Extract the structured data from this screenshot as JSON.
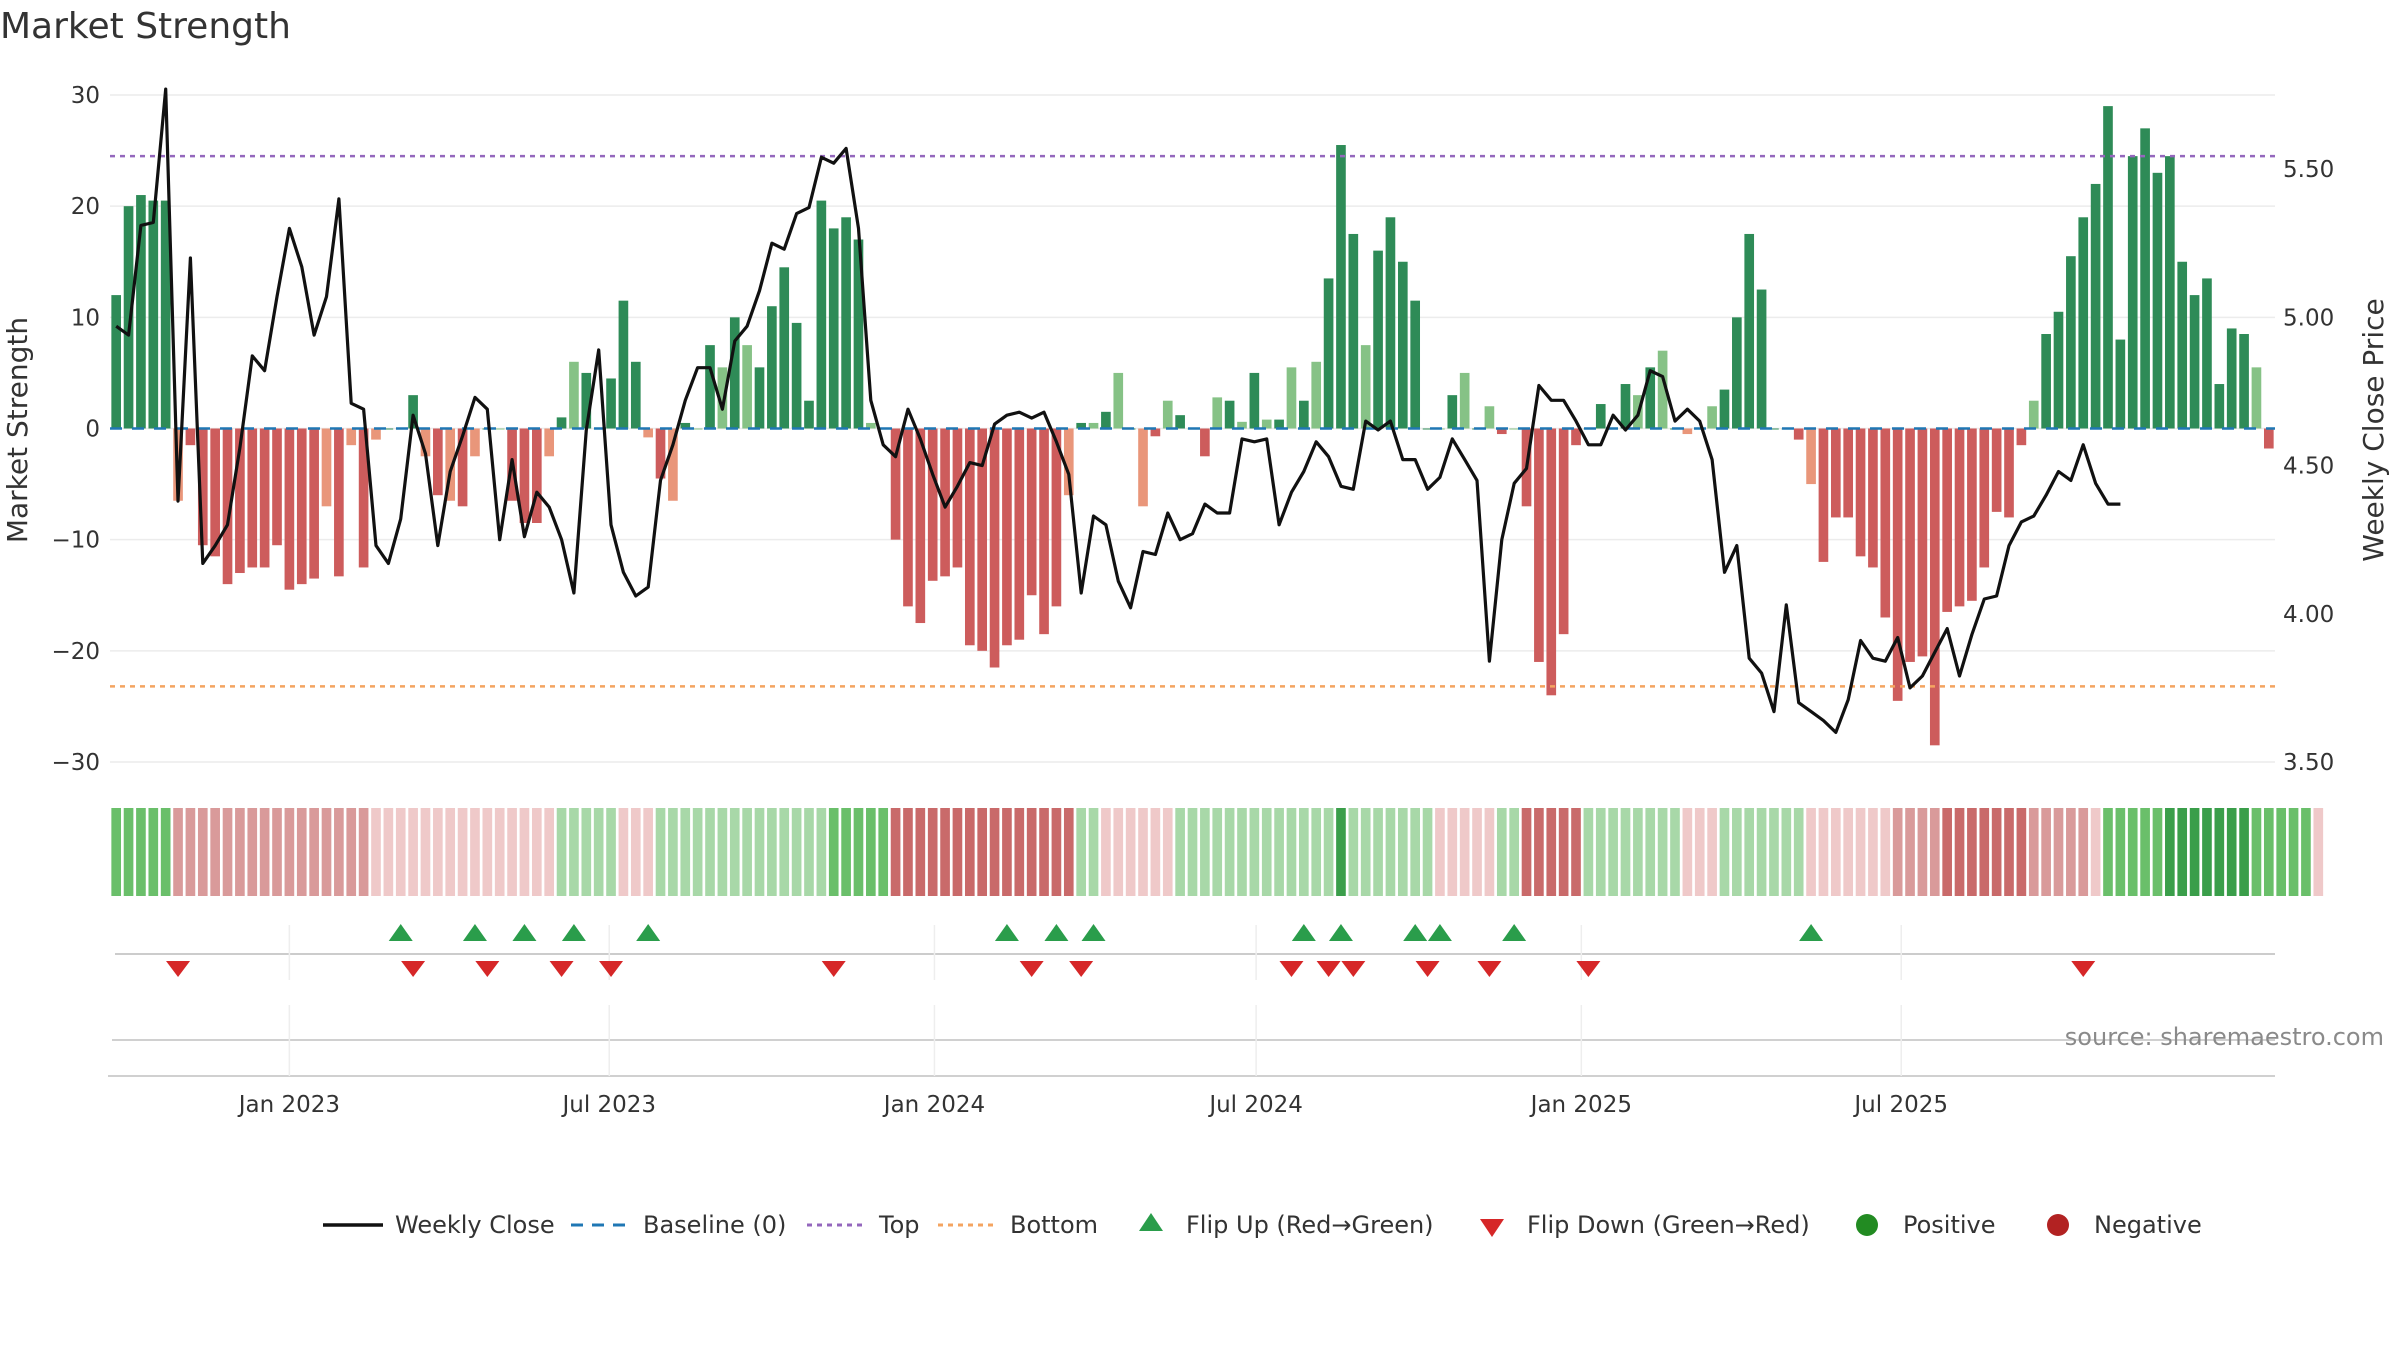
{
  "chart_data": {
    "type": "bar",
    "title": "Market Strength",
    "ylabel": "Market Strength",
    "y2label": "Weekly Close Price",
    "source": "source: sharemaestro.com",
    "ylim": [
      -30,
      30
    ],
    "y2lim": [
      3.5,
      5.75
    ],
    "y_ticks": [
      30,
      20,
      10,
      0,
      -10,
      -20,
      -30
    ],
    "y_tick_labels": [
      "30",
      "20",
      "10",
      "0",
      "−10",
      "−20",
      "−30"
    ],
    "y2_ticks": [
      5.5,
      5.0,
      4.5,
      4.0,
      3.5
    ],
    "y2_tick_labels": [
      "5.50",
      "5.00",
      "4.50",
      "4.00",
      "3.50"
    ],
    "top_line": 24.5,
    "bottom_line": -23.2,
    "start_date": "2022-09-25",
    "x_ticks": [
      {
        "date": "2023-01-01",
        "label": "Jan 2023"
      },
      {
        "date": "2023-07-01",
        "label": "Jul 2023"
      },
      {
        "date": "2024-01-01",
        "label": "Jan 2024"
      },
      {
        "date": "2024-07-01",
        "label": "Jul 2024"
      },
      {
        "date": "2025-01-01",
        "label": "Jan 2025"
      },
      {
        "date": "2025-07-01",
        "label": "Jul 2025"
      }
    ],
    "strength": [
      12,
      20,
      21,
      20.5,
      20.5,
      -6.5,
      -1.5,
      -10.5,
      -11.5,
      -14,
      -13,
      -12.5,
      -12.5,
      -10.5,
      -14.5,
      -14,
      -13.5,
      -7,
      -13.3,
      -1.5,
      -12.5,
      -1,
      0,
      0,
      3,
      -2.5,
      -6,
      -6.5,
      -7,
      -2.5,
      0,
      0,
      -6.5,
      -8.5,
      -8.5,
      -2.5,
      1,
      6,
      5,
      0,
      4.5,
      11.5,
      6,
      -0.8,
      -4.5,
      -6.5,
      0.5,
      0,
      7.5,
      5.5,
      10,
      7.5,
      5.5,
      11,
      14.5,
      9.5,
      2.5,
      20.5,
      18,
      19,
      17,
      0.5,
      0,
      -10,
      -16,
      -17.5,
      -13.7,
      -13.3,
      -12.5,
      -19.5,
      -20,
      -21.5,
      -19.5,
      -19,
      -15,
      -18.5,
      -16,
      -6,
      0.5,
      0.5,
      1.5,
      5,
      0,
      -7,
      -0.7,
      2.5,
      1.2,
      0,
      -2.5,
      2.8,
      2.5,
      0.6,
      5,
      0.8,
      0.8,
      5.5,
      2.5,
      6,
      13.5,
      25.5,
      17.5,
      7.5,
      16,
      19,
      15,
      11.5,
      0,
      0,
      3,
      5,
      0,
      2,
      -0.5,
      0,
      -7,
      -21,
      -24,
      -18.5,
      -1.5,
      0,
      2.2,
      0,
      4,
      3,
      5.5,
      7,
      0,
      -0.5,
      0,
      2,
      3.5,
      10,
      17.5,
      12.5,
      0,
      0,
      -1,
      -5,
      -12,
      -8,
      -8,
      -11.5,
      -12.5,
      -17,
      -24.5,
      -21,
      -20.5,
      -28.5,
      -16.5,
      -16,
      -15.5,
      -12.5,
      -7.5,
      -8,
      -1.5,
      2.5,
      8.5,
      10.5,
      15.5,
      19,
      22,
      29,
      8,
      24.5,
      27,
      23,
      24.5,
      15,
      12,
      13.5,
      4,
      9,
      8.5,
      5.5,
      -1.8
    ],
    "close": [
      4.97,
      4.94,
      5.31,
      5.32,
      5.77,
      4.38,
      5.2,
      4.17,
      4.23,
      4.3,
      4.56,
      4.87,
      4.82,
      5.07,
      5.3,
      5.17,
      4.94,
      5.07,
      5.4,
      4.71,
      4.69,
      4.23,
      4.17,
      4.32,
      4.67,
      4.54,
      4.23,
      4.48,
      4.6,
      4.73,
      4.69,
      4.25,
      4.52,
      4.26,
      4.41,
      4.36,
      4.25,
      4.07,
      4.62,
      4.89,
      4.3,
      4.14,
      4.06,
      4.09,
      4.45,
      4.57,
      4.72,
      4.83,
      4.83,
      4.69,
      4.92,
      4.97,
      5.09,
      5.25,
      5.23,
      5.35,
      5.37,
      5.54,
      5.52,
      5.57,
      5.3,
      4.72,
      4.57,
      4.53,
      4.69,
      4.59,
      4.47,
      4.36,
      4.43,
      4.51,
      4.5,
      4.64,
      4.67,
      4.68,
      4.66,
      4.68,
      4.58,
      4.47,
      4.07,
      4.33,
      4.3,
      4.11,
      4.02,
      4.21,
      4.2,
      4.34,
      4.25,
      4.27,
      4.37,
      4.34,
      4.34,
      4.59,
      4.58,
      4.59,
      4.3,
      4.41,
      4.48,
      4.58,
      4.53,
      4.43,
      4.42,
      4.65,
      4.62,
      4.65,
      4.52,
      4.52,
      4.42,
      4.46,
      4.59,
      4.52,
      4.45,
      3.84,
      4.25,
      4.44,
      4.49,
      4.77,
      4.72,
      4.72,
      4.65,
      4.57,
      4.57,
      4.67,
      4.62,
      4.67,
      4.82,
      4.8,
      4.65,
      4.69,
      4.65,
      4.52,
      4.14,
      4.23,
      3.85,
      3.8,
      3.67,
      4.03,
      3.7,
      3.67,
      3.64,
      3.6,
      3.71,
      3.91,
      3.85,
      3.84,
      3.92,
      3.75,
      3.79,
      3.87,
      3.95,
      3.79,
      3.93,
      4.05,
      4.06,
      4.23,
      4.31,
      4.33,
      4.4,
      4.48,
      4.45,
      4.57,
      4.44,
      4.37,
      4.37
    ],
    "band": [
      5,
      5,
      5,
      5,
      5,
      2,
      2,
      2,
      2,
      2,
      2,
      2,
      2,
      2,
      2,
      2,
      2,
      2,
      2,
      2,
      2,
      1,
      1,
      1,
      1,
      1,
      1,
      1,
      1,
      1,
      1,
      1,
      1,
      1,
      1,
      1,
      4,
      4,
      4,
      4,
      4,
      1,
      1,
      1,
      4,
      4,
      4,
      4,
      4,
      4,
      4,
      4,
      4,
      4,
      4,
      4,
      4,
      4,
      5,
      5,
      5,
      5,
      5,
      3,
      3,
      3,
      3,
      3,
      3,
      3,
      3,
      3,
      3,
      3,
      3,
      3,
      3,
      3,
      4,
      4,
      1,
      1,
      1,
      1,
      1,
      1,
      4,
      4,
      4,
      4,
      4,
      4,
      4,
      4,
      4,
      4,
      4,
      4,
      4,
      6,
      4,
      4,
      4,
      4,
      4,
      4,
      4,
      1,
      1,
      1,
      1,
      1,
      4,
      4,
      3,
      3,
      3,
      3,
      3,
      4,
      4,
      4,
      4,
      4,
      4,
      4,
      4,
      1,
      1,
      1,
      4,
      4,
      4,
      4,
      4,
      4,
      4,
      1,
      1,
      1,
      1,
      1,
      1,
      1,
      2,
      2,
      2,
      2,
      3,
      3,
      3,
      3,
      3,
      3,
      3,
      2,
      2,
      2,
      2,
      2,
      1,
      5,
      5,
      5,
      5,
      5,
      6,
      6,
      6,
      6,
      6,
      6,
      6,
      5,
      5,
      5,
      5,
      5,
      1
    ],
    "flips_up": [
      23,
      29,
      33,
      37,
      43,
      72,
      76,
      79,
      96,
      99,
      105,
      107,
      113,
      137
    ],
    "flips_down": [
      5,
      24,
      30,
      36,
      40,
      58,
      74,
      78,
      95,
      98,
      100,
      106,
      111,
      119,
      159
    ],
    "legend": [
      {
        "label": "Weekly Close",
        "kind": "line",
        "color": "#111111"
      },
      {
        "label": "Baseline (0)",
        "kind": "dash",
        "color": "#1f77b4"
      },
      {
        "label": "Top",
        "kind": "dot",
        "color": "#9467bd"
      },
      {
        "label": "Bottom",
        "kind": "dot",
        "color": "#f4a460"
      },
      {
        "label": "Flip Up (Red→Green)",
        "kind": "tri-up",
        "color": "#2a9d4b"
      },
      {
        "label": "Flip Down (Green→Red)",
        "kind": "tri-down",
        "color": "#d62728"
      },
      {
        "label": "Positive",
        "kind": "circle",
        "color": "#228b22"
      },
      {
        "label": "Negative",
        "kind": "circle",
        "color": "#b22222"
      }
    ],
    "colors": {
      "strong_pos": "#2e8b57",
      "weak_pos": "#86c286",
      "strong_neg": "#cd5c5c",
      "weak_neg": "#e9967a",
      "close_line": "#111111",
      "baseline": "#1f77b4",
      "top": "#9467bd",
      "bottom": "#f4a460",
      "flip_up": "#2a9d4b",
      "flip_down": "#d62728",
      "band_levels": [
        "#eeeeee",
        "#efc9c9",
        "#d99a9a",
        "#c96a6a",
        "#a8d8a8",
        "#6abf6a",
        "#3a9e4a"
      ]
    }
  }
}
